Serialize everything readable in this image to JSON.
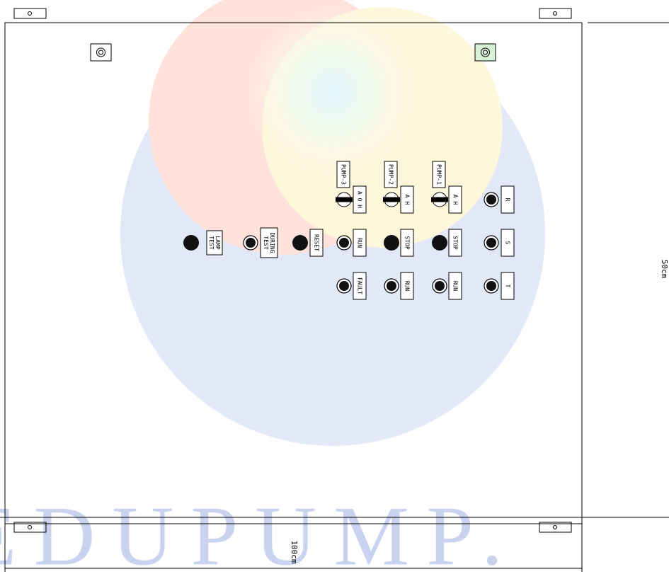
{
  "watermark": "EDUPUMP.",
  "dimensions": {
    "width": "100cm",
    "height": "50cm"
  },
  "pumps": [
    "PUMP-3",
    "PUMP-2",
    "PUMP-1"
  ],
  "selectors": [
    "A O H",
    "A H",
    "A H"
  ],
  "phases": [
    "R",
    "S",
    "T"
  ],
  "lamp_test": [
    "LAMP",
    "TEST"
  ],
  "during_test": [
    "DURING",
    "TEST"
  ],
  "reset": "RESET",
  "row2": [
    "RUN",
    "STOP",
    "STOP"
  ],
  "row3": [
    "FAULT",
    "RUN",
    "RUN"
  ]
}
